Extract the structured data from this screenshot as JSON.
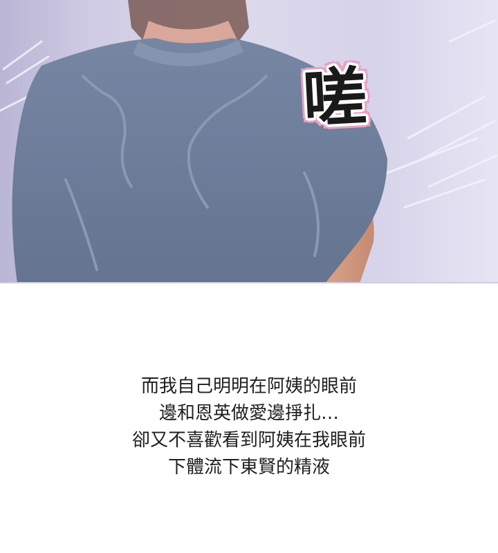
{
  "panel": {
    "sound_effect": "嗟",
    "colors": {
      "shirt": "#6f7f9c",
      "background": "#d9d6ea",
      "sfx_outline": "#e7a2c2"
    }
  },
  "caption": {
    "lines": [
      "而我自己明明在阿姨的眼前",
      "邊和恩英做愛邊掙扎…",
      "卻又不喜歡看到阿姨在我眼前",
      "下體流下東賢的精液"
    ]
  }
}
